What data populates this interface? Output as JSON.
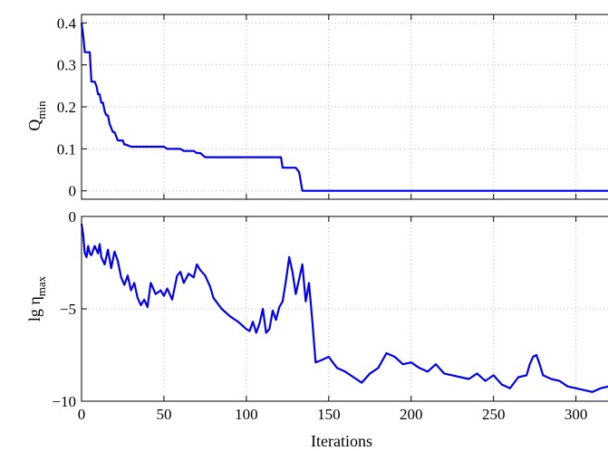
{
  "chart_data": [
    {
      "type": "line",
      "panel": "top",
      "ylabel": "Q",
      "ylabel_subscript": "min",
      "xlabel": "",
      "xlim": [
        0,
        320
      ],
      "ylim": [
        -0.02,
        0.42
      ],
      "yticks": [
        0,
        0.1,
        0.2,
        0.3,
        0.4
      ],
      "ytick_labels": [
        "0",
        "0.1",
        "0.2",
        "0.3",
        "0.4"
      ],
      "xticks": [
        0,
        50,
        100,
        150,
        200,
        250,
        300
      ],
      "xtick_labels": [],
      "grid": true,
      "color": "#0000ee",
      "series": [
        {
          "x": [
            0,
            1,
            2,
            3,
            5,
            6,
            8,
            9,
            10,
            11,
            12,
            13,
            14,
            15,
            16,
            17,
            18,
            19,
            20,
            22,
            24,
            25,
            26,
            27,
            30,
            35,
            40,
            50,
            52,
            55,
            58,
            60,
            62,
            65,
            68,
            70,
            72,
            75,
            80,
            90,
            100,
            110,
            120,
            121,
            122,
            125,
            128,
            130,
            132,
            134,
            136,
            140,
            150,
            200,
            250,
            300,
            320
          ],
          "y": [
            0.4,
            0.37,
            0.33,
            0.33,
            0.33,
            0.26,
            0.26,
            0.25,
            0.23,
            0.23,
            0.21,
            0.21,
            0.19,
            0.18,
            0.18,
            0.16,
            0.15,
            0.14,
            0.14,
            0.12,
            0.12,
            0.12,
            0.11,
            0.11,
            0.105,
            0.105,
            0.105,
            0.105,
            0.1,
            0.1,
            0.1,
            0.1,
            0.095,
            0.095,
            0.095,
            0.09,
            0.09,
            0.08,
            0.08,
            0.08,
            0.08,
            0.08,
            0.08,
            0.08,
            0.055,
            0.055,
            0.055,
            0.055,
            0.045,
            0.0,
            0.0,
            0.0,
            0.0,
            0.0,
            0.0,
            0.0,
            0.0
          ]
        }
      ]
    },
    {
      "type": "line",
      "panel": "bottom",
      "ylabel": "lg η",
      "ylabel_subscript": "max",
      "xlabel": "Iterations",
      "xlim": [
        0,
        320
      ],
      "ylim": [
        -10,
        0
      ],
      "yticks": [
        -10,
        -5,
        0
      ],
      "ytick_labels": [
        "−10",
        "−5",
        "0"
      ],
      "xticks": [
        0,
        50,
        100,
        150,
        200,
        250,
        300
      ],
      "xtick_labels": [
        "0",
        "50",
        "100",
        "150",
        "200",
        "250",
        "300"
      ],
      "grid": true,
      "color": "#0000ee",
      "series": [
        {
          "x": [
            0,
            1,
            2,
            3,
            4,
            5,
            6,
            8,
            10,
            11,
            12,
            14,
            16,
            18,
            20,
            22,
            24,
            26,
            28,
            30,
            32,
            34,
            36,
            38,
            40,
            42,
            45,
            48,
            50,
            52,
            55,
            58,
            60,
            62,
            65,
            68,
            70,
            72,
            75,
            78,
            80,
            85,
            90,
            95,
            100,
            102,
            104,
            106,
            108,
            110,
            112,
            114,
            116,
            118,
            120,
            122,
            124,
            126,
            128,
            130,
            132,
            134,
            136,
            138,
            140,
            142,
            145,
            150,
            155,
            160,
            165,
            170,
            175,
            180,
            185,
            190,
            195,
            200,
            205,
            210,
            215,
            220,
            225,
            230,
            235,
            240,
            245,
            250,
            255,
            260,
            265,
            270,
            272,
            274,
            276,
            278,
            280,
            285,
            290,
            295,
            300,
            305,
            310,
            315,
            320
          ],
          "y": [
            -0.4,
            -1.0,
            -2.0,
            -2.2,
            -1.6,
            -2.0,
            -2.1,
            -1.6,
            -2.0,
            -1.5,
            -2.2,
            -2.6,
            -1.8,
            -2.8,
            -1.9,
            -2.4,
            -3.3,
            -3.7,
            -3.2,
            -4.0,
            -3.6,
            -4.4,
            -4.8,
            -4.5,
            -4.9,
            -3.6,
            -4.2,
            -4.0,
            -4.3,
            -3.9,
            -4.5,
            -3.2,
            -3.0,
            -3.6,
            -3.1,
            -3.3,
            -2.6,
            -2.9,
            -3.2,
            -3.8,
            -4.4,
            -5.0,
            -5.4,
            -5.7,
            -6.1,
            -6.2,
            -5.7,
            -6.3,
            -5.8,
            -5.0,
            -6.3,
            -6.1,
            -5.1,
            -5.6,
            -4.9,
            -4.6,
            -3.5,
            -2.2,
            -3.0,
            -4.2,
            -3.4,
            -2.6,
            -4.6,
            -3.6,
            -5.6,
            -7.9,
            -7.8,
            -7.6,
            -8.2,
            -8.4,
            -8.7,
            -9.0,
            -8.5,
            -8.2,
            -7.4,
            -7.6,
            -8.0,
            -7.9,
            -8.2,
            -8.4,
            -8.0,
            -8.5,
            -8.6,
            -8.7,
            -8.8,
            -8.5,
            -8.9,
            -8.6,
            -9.1,
            -9.3,
            -8.7,
            -8.6,
            -8.0,
            -7.6,
            -7.5,
            -8.0,
            -8.6,
            -8.8,
            -8.9,
            -9.2,
            -9.3,
            -9.4,
            -9.5,
            -9.3,
            -9.2
          ]
        }
      ]
    }
  ]
}
